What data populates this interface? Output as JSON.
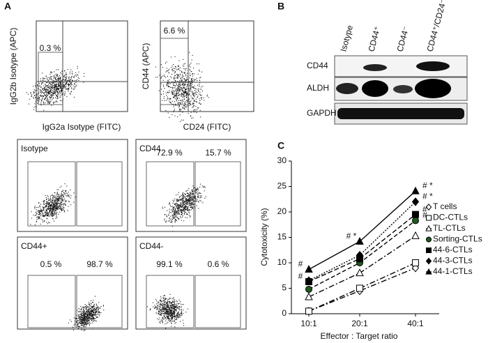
{
  "panel_a": {
    "label": "A",
    "top": [
      {
        "y_label": "IgG2b Isotype (APC)",
        "x_label": "IgG2a Isotype (FITC)",
        "percent": "0.3 %"
      },
      {
        "y_label": "CD44 (APC)",
        "x_label": "CD24 (FITC)",
        "percent": "6.6 %"
      }
    ],
    "bottom": [
      {
        "title": "Isotype",
        "percents": []
      },
      {
        "title": "CD44",
        "percents": [
          "72.9 %",
          "15.7 %"
        ]
      },
      {
        "title": "CD44+",
        "percents": [
          "0.5 %",
          "98.7 %"
        ]
      },
      {
        "title": "CD44-",
        "percents": [
          "99.1 %",
          "0.6 %"
        ]
      }
    ]
  },
  "panel_b": {
    "label": "B",
    "columns": [
      "Isotype",
      "CD44⁺",
      "CD44⁻",
      "CD44⁺/CD24⁻"
    ],
    "rows": [
      "CD44",
      "ALDH",
      "GAPDH"
    ]
  },
  "panel_c_label": "C",
  "chart_data": {
    "type": "line",
    "x_label": "Effector : Target ratio",
    "y_label": "Cytotoxicity (%)",
    "categories": [
      "10:1",
      "20:1",
      "40:1"
    ],
    "ylim": [
      0,
      30
    ],
    "yticks": [
      0,
      5,
      10,
      15,
      20,
      25,
      30
    ],
    "series": [
      {
        "name": "T cells",
        "color": "#000000",
        "marker": "diamond",
        "fill": "#ffffff",
        "dash": "8 3 2 3",
        "values": [
          0.5,
          4.5,
          9
        ],
        "notes": [
          null,
          null,
          null
        ]
      },
      {
        "name": "DC-CTLs",
        "color": "#000000",
        "marker": "square",
        "fill": "#ffffff",
        "dash": "8 3 2 3",
        "values": [
          0.5,
          5,
          10
        ],
        "notes": [
          null,
          null,
          null
        ]
      },
      {
        "name": "TL-CTLs",
        "color": "#000000",
        "marker": "triangle",
        "fill": "#ffffff",
        "dash": "8 3 2 3",
        "values": [
          3.3,
          8,
          15.3
        ],
        "notes": [
          null,
          null,
          null
        ]
      },
      {
        "name": "Sorting-CTLs",
        "color": "#000000",
        "marker": "circle",
        "fill": "#1e5a1e",
        "dash": "6 3",
        "values": [
          4.8,
          10,
          18.3
        ],
        "notes": [
          null,
          null,
          "#"
        ]
      },
      {
        "name": "44-6-CTLs",
        "color": "#000000",
        "marker": "square",
        "fill": "#000000",
        "dash": "7 3",
        "values": [
          6.3,
          10.8,
          19.5
        ],
        "notes": [
          "#",
          null,
          "#"
        ]
      },
      {
        "name": "44-3-CTLs",
        "color": "#000000",
        "marker": "diamond",
        "fill": "#000000",
        "dash": "2 2",
        "values": [
          6.5,
          11.5,
          22
        ],
        "notes": [
          null,
          null,
          "# *"
        ]
      },
      {
        "name": "44-1-CTLs",
        "color": "#000000",
        "marker": "triangle",
        "fill": "#000000",
        "dash": "none",
        "values": [
          8.7,
          14.2,
          24.1
        ],
        "notes": [
          "#",
          "# *",
          "# *"
        ]
      }
    ]
  }
}
